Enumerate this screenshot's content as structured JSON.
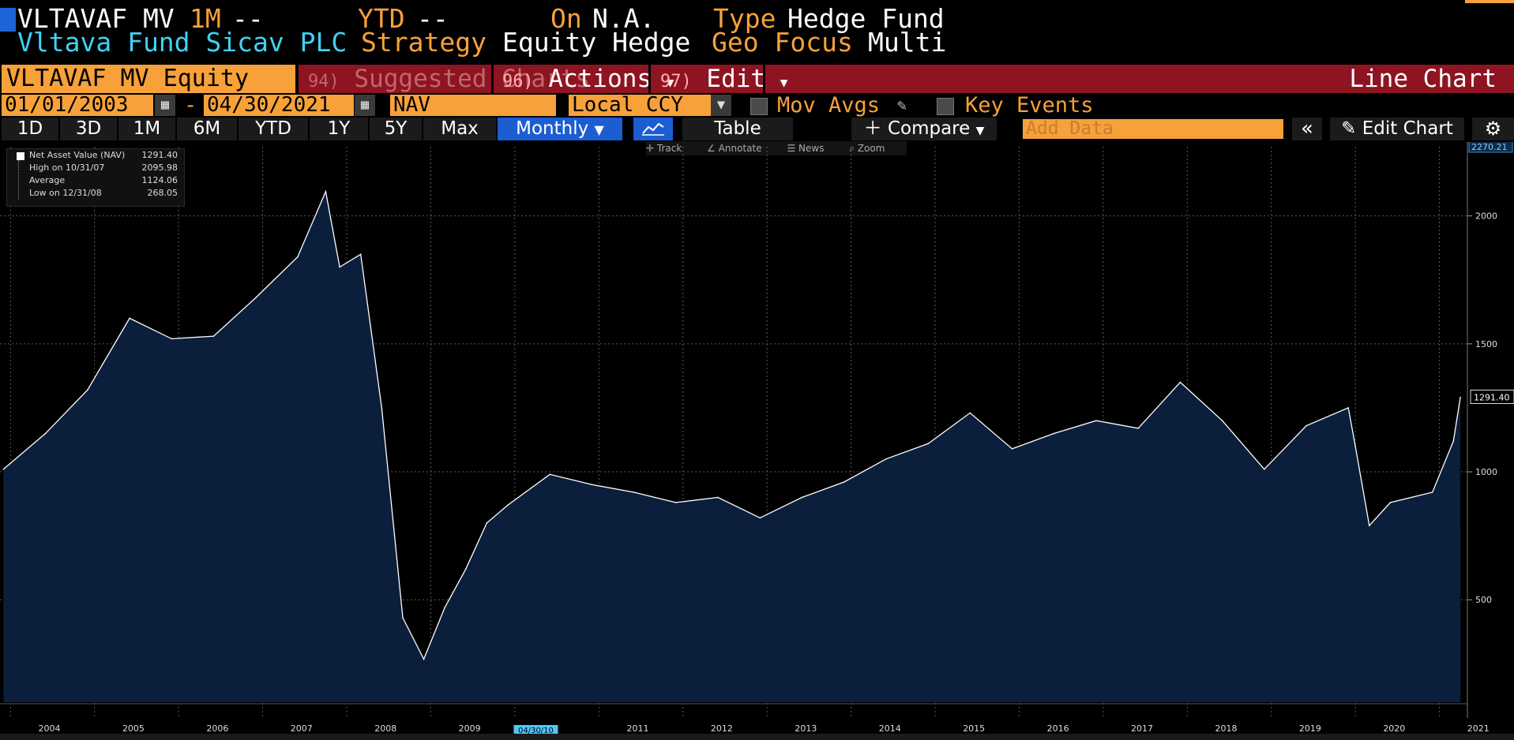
{
  "header": {
    "ticker": "VLTAVAF MV",
    "m1_label": "1M",
    "m1_value": "--",
    "ytd_label": "YTD",
    "ytd_value": "--",
    "on_label": "On",
    "on_value": "N.A.",
    "type_label": "Type",
    "type_value": "Hedge Fund",
    "fund_name": "Vltava Fund Sicav PLC",
    "strategy_label": "Strategy",
    "strategy_value": "Equity Hedge",
    "geo_label": "Geo Focus",
    "geo_value": "Multi"
  },
  "menubar": {
    "security": "VLTAVAF MV Equity",
    "suggested_num": "94)",
    "suggested": "Suggested Charts",
    "actions_num": "96)",
    "actions": "Actions",
    "edit_num": "97)",
    "edit": "Edit",
    "chart_type": "Line Chart"
  },
  "controls": {
    "start_date": "01/01/2003",
    "dash": "-",
    "end_date": "04/30/2021",
    "field": "NAV",
    "currency": "Local CCY",
    "mov_avgs": "Mov Avgs",
    "key_events": "Key Events"
  },
  "periods": [
    "1D",
    "3D",
    "1M",
    "6M",
    "YTD",
    "1Y",
    "5Y",
    "Max"
  ],
  "toolbar": {
    "frequency": "Monthly",
    "table": "Table",
    "compare": "Compare",
    "add_data_placeholder": "Add Data",
    "edit_chart": "Edit Chart"
  },
  "mini_tools": [
    "Track",
    "Annotate",
    "News",
    "Zoom"
  ],
  "legend": [
    {
      "label": "Net Asset Value (NAV)",
      "value": "1291.40"
    },
    {
      "label": "High on 10/31/07",
      "value": "2095.98"
    },
    {
      "label": "Average",
      "value": "1124.06"
    },
    {
      "label": "Low on 12/31/08",
      "value": "268.05"
    }
  ],
  "colors": {
    "accent": "#f7a13a",
    "cyan": "#3fd3f5",
    "menubar_red": "#8e1422",
    "selected_blue": "#1c5ed1",
    "area_fill": "#0b1f3d",
    "line": "#ffffff"
  },
  "chart_data": {
    "type": "area",
    "series": [
      {
        "name": "Net Asset Value (NAV)",
        "x": [
          "2003-12",
          "2004-06",
          "2004-12",
          "2005-06",
          "2005-12",
          "2006-06",
          "2006-12",
          "2007-06",
          "2007-10",
          "2007-12",
          "2008-03",
          "2008-06",
          "2008-09",
          "2008-12",
          "2009-03",
          "2009-06",
          "2009-09",
          "2009-12",
          "2010-06",
          "2010-12",
          "2011-06",
          "2011-12",
          "2012-06",
          "2012-12",
          "2013-06",
          "2013-12",
          "2014-06",
          "2014-12",
          "2015-06",
          "2015-12",
          "2016-06",
          "2016-12",
          "2017-06",
          "2017-12",
          "2018-06",
          "2018-12",
          "2019-06",
          "2019-12",
          "2020-01",
          "2020-03",
          "2020-06",
          "2020-12",
          "2021-03",
          "2021-04"
        ],
        "values": [
          1010,
          1150,
          1320,
          1600,
          1520,
          1530,
          1680,
          1840,
          2095,
          1800,
          1850,
          1250,
          430,
          268,
          470,
          620,
          800,
          870,
          990,
          950,
          920,
          880,
          900,
          820,
          900,
          960,
          1050,
          1110,
          1230,
          1090,
          1150,
          1200,
          1170,
          1350,
          1200,
          1010,
          1180,
          1250,
          1100,
          790,
          880,
          920,
          1120,
          1291.4
        ]
      }
    ],
    "x_tick_labels": [
      "2004",
      "2005",
      "2006",
      "2007",
      "2008",
      "2009",
      "2011",
      "2012",
      "2013",
      "2014",
      "2015",
      "2016",
      "2017",
      "2018",
      "2019",
      "2020",
      "2021"
    ],
    "y_tick_labels": [
      "500",
      "1000",
      "1500",
      "2000"
    ],
    "ylim": [
      100,
      2270.21
    ],
    "y_max_label": "2270.21",
    "last_value_label": "1291.40",
    "crosshair_date": "04/30/10",
    "grid": true
  }
}
